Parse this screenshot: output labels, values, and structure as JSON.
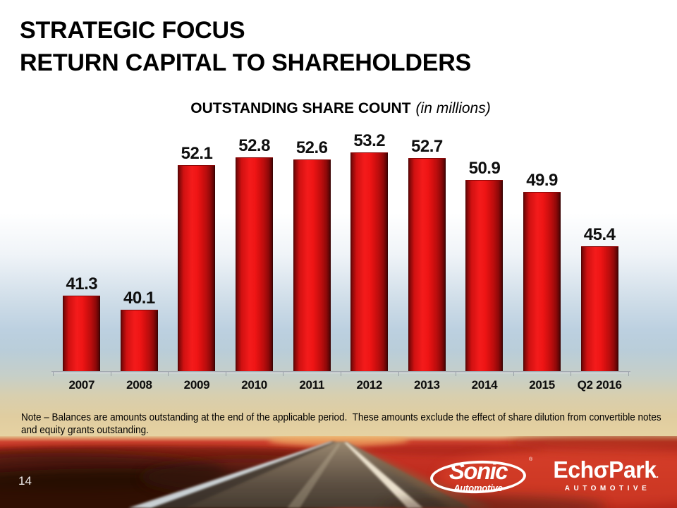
{
  "slide": {
    "title_lines": [
      "STRATEGIC FOCUS",
      "RETURN CAPITAL TO SHAREHOLDERS"
    ],
    "page_number": "14",
    "note_lines": [
      "Note – Balances are amounts outstanding at the end of the applicable period.  These amounts exclude the effect of share dilution from convertible notes",
      "and equity grants outstanding."
    ]
  },
  "chart_data": {
    "type": "bar",
    "title": "OUTSTANDING SHARE COUNT",
    "title_suffix": "(in millions)",
    "categories": [
      "2007",
      "2008",
      "2009",
      "2010",
      "2011",
      "2012",
      "2013",
      "2014",
      "2015",
      "Q2 2016"
    ],
    "values": [
      41.3,
      40.1,
      52.1,
      52.8,
      52.6,
      53.2,
      52.7,
      50.9,
      49.9,
      45.4
    ],
    "xlabel": "",
    "ylabel": "",
    "ylim": [
      35,
      55
    ],
    "grid": false,
    "legend": false,
    "data_labels": true,
    "bar_color": "#e60f0f"
  },
  "footer": {
    "sonic": {
      "name": "Sonic",
      "sub": "Automotive",
      "reg": "®"
    },
    "echopark": {
      "name": "EchoPark",
      "mark": ".",
      "sub": "AUTOMOTIVE"
    }
  },
  "colors": {
    "bar_red": "#e60f0f",
    "banner_red": "#c53023",
    "sky_blue": "#bcd0e0",
    "horizon_tan": "#e3cfa0",
    "label_black": "#0f0f0f"
  }
}
